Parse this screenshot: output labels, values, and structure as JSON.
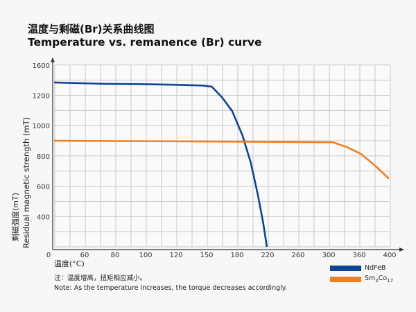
{
  "title_cn": "温度与剩磁(Br)关系曲线图",
  "title_en": "Temperature vs. remanence (Br) curve",
  "note_cn": "注：温度增高，扭矩相应减小。",
  "note_en": "Note: As the temperature increases, the torque decreases accordingly.",
  "chart_data": {
    "type": "line",
    "title": "Temperature vs. remanence (Br) curve",
    "xlabel": "温度(°C)",
    "ylabel_cn": "剩磁强度(mT)",
    "ylabel_en": "Residual magnetic strength (mT)",
    "origin_label": "0",
    "x_ticks": [
      0,
      60,
      80,
      100,
      120,
      150,
      180,
      220,
      260,
      300,
      360,
      400
    ],
    "x_tick_labels": [
      "60",
      "80",
      "100",
      "120",
      "150",
      "180",
      "220",
      "260",
      "300",
      "360",
      "400"
    ],
    "y_ticks": [
      0,
      400,
      600,
      800,
      1000,
      1200,
      1600
    ],
    "y_tick_labels": [
      "400",
      "600",
      "800",
      "1000",
      "1200",
      "1600"
    ],
    "axis_scale": "ticks equally spaced (non-linear)",
    "grid": true,
    "legend_position": "bottom-right",
    "series": [
      {
        "name": "NdFeB",
        "name_sub": "",
        "color": "#0d4595",
        "points": [
          [
            0,
            1370
          ],
          [
            73,
            1352
          ],
          [
            95,
            1348
          ],
          [
            118,
            1340
          ],
          [
            145,
            1330
          ],
          [
            155,
            1315
          ],
          [
            165,
            1188
          ],
          [
            175,
            1098
          ],
          [
            187,
            936
          ],
          [
            198,
            754
          ],
          [
            207,
            548
          ],
          [
            214,
            328
          ],
          [
            219,
            0
          ]
        ]
      },
      {
        "name": "Sm2Co17",
        "label_parts": [
          "Sm",
          "2",
          "Co",
          "17"
        ],
        "color": "#f07e22",
        "points": [
          [
            0,
            900
          ],
          [
            150,
            895
          ],
          [
            308,
            890
          ],
          [
            335,
            860
          ],
          [
            362,
            814
          ],
          [
            380,
            740
          ],
          [
            399,
            650
          ]
        ]
      }
    ]
  }
}
